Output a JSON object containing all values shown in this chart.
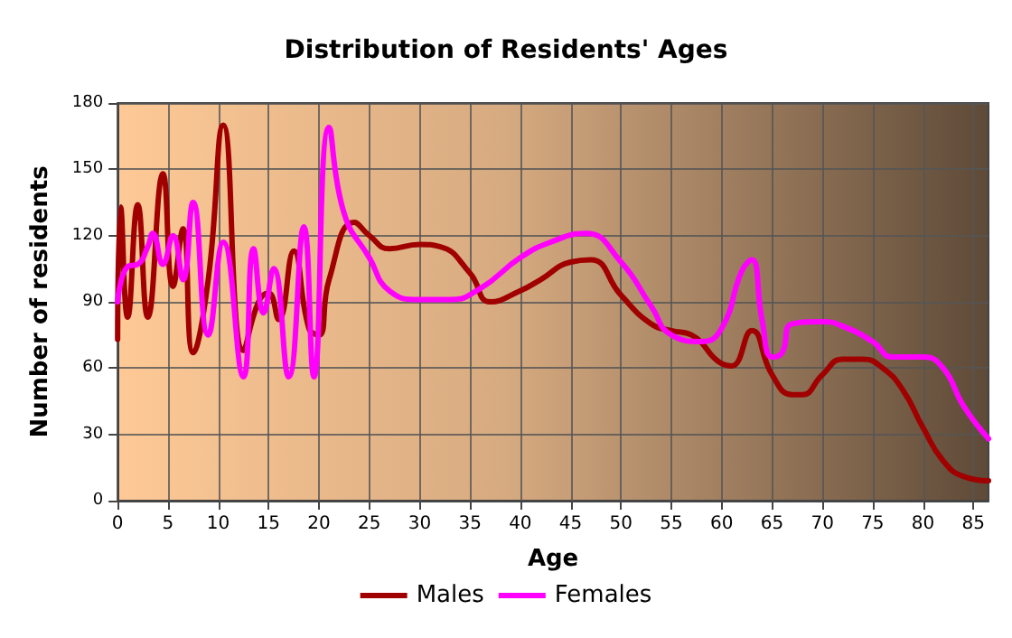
{
  "chart_data": {
    "type": "line",
    "title": "Distribution of Residents' Ages",
    "xlabel": "Age",
    "ylabel": "Number of residents",
    "xlim": [
      0,
      86.5
    ],
    "xticks": [
      0,
      5,
      10,
      15,
      20,
      25,
      30,
      35,
      40,
      45,
      50,
      55,
      60,
      65,
      70,
      75,
      80,
      85
    ],
    "ylim": [
      0,
      180
    ],
    "yticks": [
      0,
      30,
      60,
      90,
      120,
      150,
      180
    ],
    "grid": true,
    "legend": "bottom",
    "marker": "none",
    "line_style": "solid",
    "series": [
      {
        "name": "Males",
        "color": "#a00000",
        "x": [
          0,
          0.3,
          1,
          2,
          3,
          4.5,
          5.5,
          6.5,
          7.5,
          9,
          10.5,
          12.5,
          14,
          15,
          16,
          17.5,
          19,
          20,
          21,
          23.5,
          25,
          27,
          30,
          32,
          35,
          37,
          40,
          42,
          45,
          47,
          50,
          53,
          55,
          57,
          60,
          61,
          63,
          65,
          67,
          68,
          70,
          72,
          74,
          76,
          78,
          80,
          82,
          84,
          86.5
        ],
        "values": [
          73,
          133,
          83,
          134,
          83,
          148,
          97,
          123,
          67,
          100,
          170,
          68,
          90,
          94,
          82,
          113,
          78,
          75,
          100,
          126,
          120,
          114,
          116,
          115,
          103,
          90,
          95,
          100,
          108,
          109,
          93,
          80,
          77,
          75,
          62,
          61,
          77,
          57,
          48,
          48,
          57,
          64,
          64,
          60,
          50,
          33,
          18,
          11,
          9
        ]
      },
      {
        "name": "Females",
        "color": "#ff00ff",
        "x": [
          0,
          1,
          2,
          3,
          3.5,
          4.5,
          5.5,
          6.5,
          7.5,
          9,
          10.5,
          12.5,
          13.5,
          14.5,
          15.5,
          17,
          18.5,
          19.5,
          21,
          22.5,
          25,
          27,
          30,
          33,
          36,
          40,
          43,
          46.5,
          50,
          53,
          55,
          58,
          60,
          62,
          63,
          64,
          65,
          66,
          67,
          70,
          72,
          75,
          77,
          80,
          82,
          84,
          86.5
        ],
        "values": [
          90,
          106,
          107,
          115,
          121,
          107,
          120,
          100,
          135,
          75,
          117,
          56,
          114,
          85,
          105,
          56,
          124,
          56,
          169,
          130,
          110,
          95,
          91,
          91,
          96,
          110,
          117,
          121,
          108,
          88,
          75,
          72,
          78,
          104,
          109,
          82,
          65,
          67,
          80,
          81,
          79,
          72,
          65,
          65,
          60,
          43,
          28
        ]
      }
    ]
  }
}
